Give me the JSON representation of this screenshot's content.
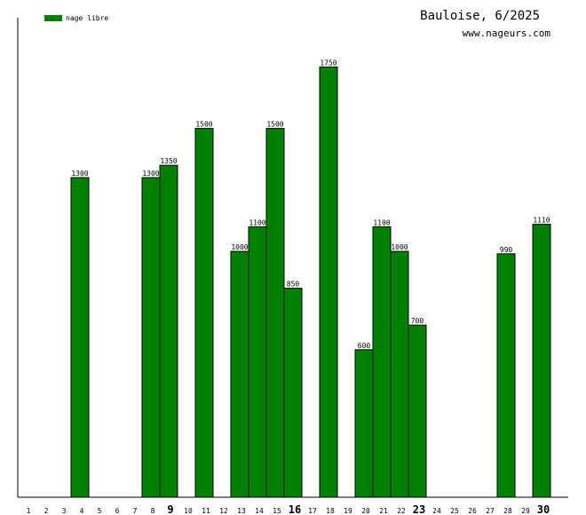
{
  "header": {
    "title": "Bauloise, 6/2025",
    "site": "www.nageurs.com"
  },
  "colors": {
    "bar": "#008000",
    "bar_border": "#000000",
    "axis": "#000000"
  },
  "chart_data": {
    "type": "bar",
    "categories": [
      "1",
      "2",
      "3",
      "4",
      "5",
      "6",
      "7",
      "8",
      "9",
      "10",
      "11",
      "12",
      "13",
      "14",
      "15",
      "16",
      "17",
      "18",
      "19",
      "20",
      "21",
      "22",
      "23",
      "24",
      "25",
      "26",
      "27",
      "28",
      "29",
      "30"
    ],
    "series": [
      {
        "name": "nage libre",
        "values": [
          null,
          null,
          null,
          1300,
          null,
          null,
          null,
          1300,
          1350,
          null,
          1500,
          null,
          1000,
          1100,
          1500,
          850,
          null,
          1750,
          null,
          600,
          1100,
          1000,
          700,
          null,
          null,
          null,
          null,
          990,
          null,
          1110
        ]
      }
    ],
    "emphasized_categories": [
      "9",
      "16",
      "23",
      "30"
    ],
    "ylim": [
      0,
      1950
    ],
    "grid": false,
    "legend_position": "top-left"
  }
}
